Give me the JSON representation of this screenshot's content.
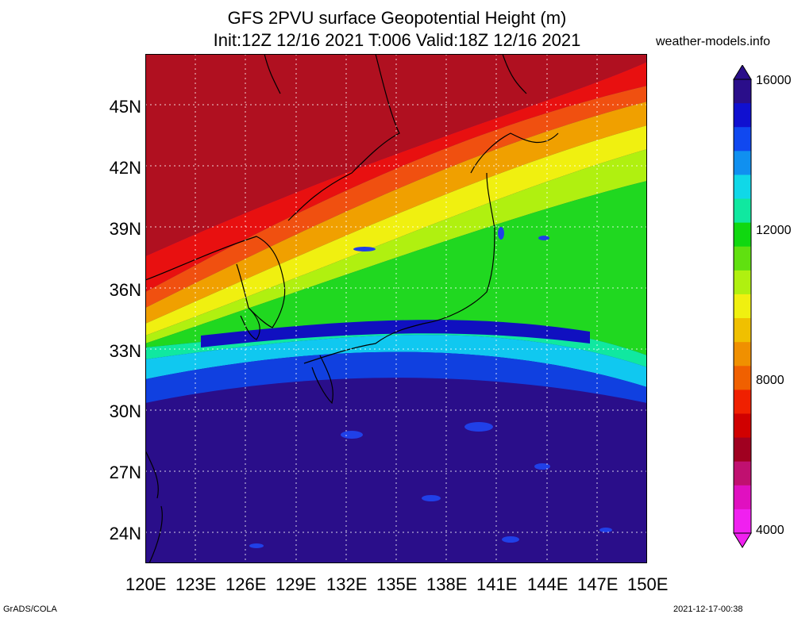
{
  "title_line1": "GFS 2PVU surface Geopotential Height (m)",
  "title_line2": "Init:12Z 12/16 2021 T:006 Valid:18Z 12/16 2021",
  "site": "weather-models.info",
  "lat_labels": [
    "45N",
    "42N",
    "39N",
    "36N",
    "33N",
    "30N",
    "27N",
    "24N"
  ],
  "lon_labels": [
    "120E",
    "123E",
    "126E",
    "129E",
    "132E",
    "135E",
    "138E",
    "141E",
    "144E",
    "147E",
    "150E"
  ],
  "colorbar": {
    "labels": [
      "16000",
      "12000",
      "8000",
      "4000"
    ],
    "colors": [
      "#2a0e8a",
      "#1010d0",
      "#1048f0",
      "#1090f0",
      "#10d8e8",
      "#10e8a0",
      "#10d810",
      "#60e010",
      "#b0f010",
      "#f0f010",
      "#f0c000",
      "#f09000",
      "#f06000",
      "#f02000",
      "#d00000",
      "#a00020",
      "#c01070",
      "#e010c0",
      "#f020f0"
    ]
  },
  "footer_left": "GrADS/COLA",
  "footer_right": "2021-12-17-00:38"
}
